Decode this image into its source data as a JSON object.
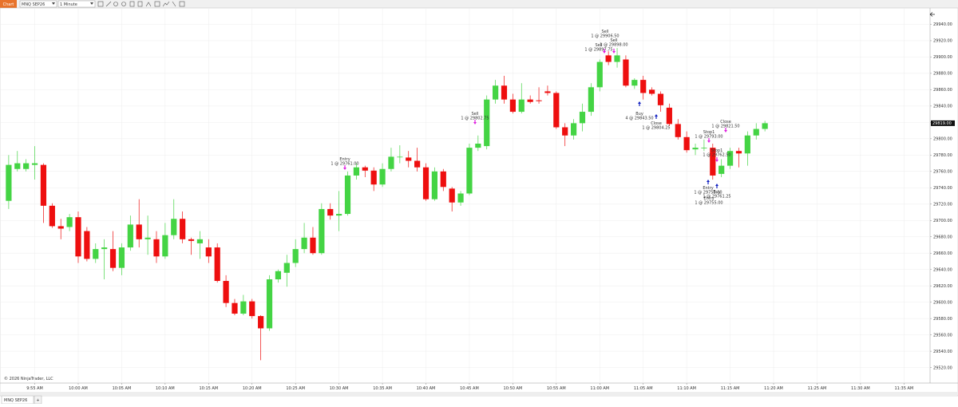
{
  "toolbar": {
    "tab": "Chart",
    "instrument": "MNQ SEP26",
    "interval": "1 Minute"
  },
  "chart_data": {
    "type": "candlestick",
    "x": [
      "9:52 AM",
      "9:53 AM",
      "9:54 AM",
      "9:55 AM",
      "9:56 AM",
      "9:57 AM",
      "9:58 AM",
      "9:59 AM",
      "10:00 AM",
      "10:01 AM",
      "10:02 AM",
      "10:03 AM",
      "10:04 AM",
      "10:05 AM",
      "10:06 AM",
      "10:07 AM",
      "10:08 AM",
      "10:09 AM",
      "10:10 AM",
      "10:11 AM",
      "10:12 AM",
      "10:13 AM",
      "10:14 AM",
      "10:15 AM",
      "10:16 AM",
      "10:17 AM",
      "10:18 AM",
      "10:19 AM",
      "10:20 AM",
      "10:21 AM",
      "10:22 AM",
      "10:23 AM",
      "10:24 AM",
      "10:25 AM",
      "10:26 AM",
      "10:27 AM",
      "10:28 AM",
      "10:29 AM",
      "10:30 AM",
      "10:31 AM",
      "10:32 AM",
      "10:33 AM",
      "10:34 AM",
      "10:35 AM",
      "10:36 AM",
      "10:37 AM",
      "10:38 AM",
      "10:39 AM",
      "10:40 AM",
      "10:41 AM",
      "10:42 AM",
      "10:43 AM",
      "10:44 AM",
      "10:45 AM",
      "10:46 AM",
      "10:47 AM",
      "10:48 AM",
      "10:49 AM",
      "10:50 AM",
      "10:51 AM",
      "10:52 AM",
      "10:53 AM",
      "10:54 AM",
      "10:55 AM",
      "10:56 AM",
      "10:57 AM",
      "10:58 AM",
      "10:59 AM",
      "11:00 AM",
      "11:01 AM",
      "11:02 AM",
      "11:03 AM",
      "11:04 AM",
      "11:05 AM",
      "11:06 AM",
      "11:07 AM",
      "11:08 AM",
      "11:09 AM",
      "11:10 AM",
      "11:11 AM",
      "11:12 AM",
      "11:13 AM",
      "11:14 AM",
      "11:15 AM",
      "11:16 AM",
      "11:17 AM",
      "11:18 AM",
      "11:19 AM"
    ],
    "open": [
      29724,
      29763,
      29763,
      29768,
      29768,
      29718,
      29693,
      29692,
      29704,
      29687,
      29653,
      29665,
      29665,
      29642,
      29667,
      29695,
      29677,
      29677,
      29656,
      29682,
      29702,
      29677,
      29672,
      29667,
      29667,
      29626,
      29599,
      29586,
      29601,
      29583,
      29568,
      29628,
      29636,
      29648,
      29665,
      29679,
      29660,
      29714,
      29706,
      29708,
      29755,
      29765,
      29761,
      29744,
      29763,
      29778,
      29777,
      29773,
      29765,
      29726,
      29760,
      29739,
      29722,
      29733,
      29789,
      29791,
      29848,
      29865,
      29848,
      29833,
      29848,
      29847,
      29858,
      29856,
      29814,
      29804,
      29819,
      29833,
      29863,
      29902,
      29894,
      29897,
      29865,
      29872,
      29860,
      29855,
      29838,
      29818,
      29802,
      29787,
      29789,
      29789,
      29757,
      29767,
      29785,
      29782,
      29804,
      29812
    ],
    "high": [
      29780,
      29785,
      29775,
      29791,
      29770,
      29721,
      29702,
      29708,
      29711,
      29692,
      29672,
      29677,
      29687,
      29672,
      29706,
      29726,
      29706,
      29687,
      29697,
      29726,
      29711,
      29679,
      29687,
      29677,
      29672,
      29633,
      29604,
      29609,
      29604,
      29584,
      29633,
      29640,
      29658,
      29677,
      29697,
      29692,
      29721,
      29721,
      29736,
      29760,
      29770,
      29767,
      29765,
      29770,
      29789,
      29792,
      29785,
      29789,
      29770,
      29765,
      29763,
      29741,
      29736,
      29794,
      29804,
      29853,
      29872,
      29877,
      29855,
      29868,
      29853,
      29863,
      29865,
      29858,
      29819,
      29824,
      29843,
      29868,
      29897,
      29907,
      29911,
      29902,
      29874,
      29877,
      29863,
      29858,
      29843,
      29824,
      29809,
      29794,
      29799,
      29794,
      29775,
      29789,
      29789,
      29809,
      29819,
      29822
    ],
    "low": [
      29714,
      29760,
      29760,
      29750,
      29697,
      29691,
      29677,
      29687,
      29648,
      29650,
      29648,
      29628,
      29638,
      29633,
      29663,
      29667,
      29658,
      29648,
      29653,
      29677,
      29672,
      29658,
      29653,
      29648,
      29624,
      29594,
      29584,
      29584,
      29580,
      29529,
      29565,
      29624,
      29619,
      29643,
      29660,
      29658,
      29658,
      29701,
      29687,
      29706,
      29750,
      29753,
      29736,
      29741,
      29760,
      29770,
      29765,
      29760,
      29724,
      29724,
      29736,
      29711,
      29718,
      29731,
      29785,
      29787,
      29843,
      29843,
      29831,
      29831,
      29843,
      29843,
      29853,
      29812,
      29791,
      29799,
      29809,
      29828,
      29858,
      29890,
      29887,
      29863,
      29861,
      29848,
      29853,
      29833,
      29816,
      29799,
      29783,
      29780,
      29785,
      29750,
      29753,
      29763,
      29765,
      29767,
      29799,
      29809
    ],
    "close": [
      29768,
      29770,
      29770,
      29770,
      29718,
      29693,
      29690,
      29704,
      29656,
      29653,
      29665,
      29667,
      29642,
      29667,
      29695,
      29677,
      29679,
      29656,
      29682,
      29702,
      29677,
      29675,
      29677,
      29656,
      29626,
      29599,
      29586,
      29601,
      29583,
      29568,
      29628,
      29638,
      29648,
      29665,
      29679,
      29660,
      29714,
      29706,
      29708,
      29755,
      29765,
      29761,
      29744,
      29763,
      29778,
      29778,
      29773,
      29765,
      29726,
      29760,
      29741,
      29722,
      29733,
      29789,
      29794,
      29848,
      29865,
      29848,
      29833,
      29848,
      29845,
      29846,
      29856,
      29814,
      29804,
      29819,
      29833,
      29863,
      29894,
      29894,
      29902,
      29865,
      29872,
      29856,
      29855,
      29841,
      29818,
      29802,
      29786,
      29789,
      29789,
      29755,
      29767,
      29785,
      29782,
      29804,
      29812,
      29819
    ],
    "up_color": "#44d444",
    "down_color": "#ee0f0f",
    "xlim": [
      "9:51 AM",
      "11:38 AM"
    ],
    "xticks": [
      "9:55 AM",
      "10:00 AM",
      "10:05 AM",
      "10:10 AM",
      "10:15 AM",
      "10:20 AM",
      "10:25 AM",
      "10:30 AM",
      "10:35 AM",
      "10:40 AM",
      "10:45 AM",
      "10:50 AM",
      "10:55 AM",
      "11:00 AM",
      "11:05 AM",
      "11:10 AM",
      "11:15 AM",
      "11:20 AM",
      "11:25 AM",
      "11:30 AM",
      "11:35 AM"
    ],
    "ylim": [
      29503,
      29960
    ],
    "yticks": [
      {
        "value": 29520,
        "label": "29520.00"
      },
      {
        "value": 29540,
        "label": "29540.00"
      },
      {
        "value": 29560,
        "label": "29560.00"
      },
      {
        "value": 29580,
        "label": "29580.00"
      },
      {
        "value": 29600,
        "label": "29600.00"
      },
      {
        "value": 29620,
        "label": "29620.00"
      },
      {
        "value": 29640,
        "label": "29640.00"
      },
      {
        "value": 29660,
        "label": "29660.00"
      },
      {
        "value": 29680,
        "label": "29680.00"
      },
      {
        "value": 29700,
        "label": "29700.00"
      },
      {
        "value": 29720,
        "label": "29720.00"
      },
      {
        "value": 29740,
        "label": "29740.00"
      },
      {
        "value": 29760,
        "label": "29760.00"
      },
      {
        "value": 29780,
        "label": "29780.00"
      },
      {
        "value": 29800,
        "label": "29800.00"
      },
      {
        "value": 29820,
        "label": "29820.00"
      },
      {
        "value": 29840,
        "label": "29840.00"
      },
      {
        "value": 29860,
        "label": "29860.00"
      },
      {
        "value": 29880,
        "label": "29880.00"
      },
      {
        "value": 29900,
        "label": "29900.00"
      },
      {
        "value": 29920,
        "label": "29920.00"
      },
      {
        "value": 29940,
        "label": "29940.00"
      }
    ],
    "grid": true,
    "last_price_label": "29819.00",
    "copyright": "© 2026 NinjaTrader, LLC",
    "annotations": [
      {
        "name": "Entry",
        "text": "1 @ 29761.00"
      },
      {
        "name": "Sell",
        "text": "1 @ 29802.75"
      },
      {
        "name": "Sell",
        "text": "1 @ 29906.50"
      },
      {
        "name": "Sell",
        "text": "1 @ 29898.00"
      },
      {
        "name": "Sell",
        "text": "1 @ 29897.75"
      },
      {
        "name": "Buy",
        "text": "4 @ 29843.50"
      },
      {
        "name": "Close",
        "text": "1 @ 29804.25"
      },
      {
        "name": "Stop1",
        "text": "1 @ 29793.00"
      },
      {
        "name": "Close",
        "text": "1 @ 29821.50"
      },
      {
        "name": "Stop1",
        "text": "1 @ 29762.50"
      },
      {
        "name": "Entry",
        "text": "1 @ 29753.00"
      },
      {
        "name": "Buy",
        "text": "1 @ 29761.25"
      },
      {
        "name": "Entry",
        "text": "1 @ 29755.00"
      }
    ]
  },
  "tabs": [
    "MNQ SEP26",
    "+"
  ]
}
